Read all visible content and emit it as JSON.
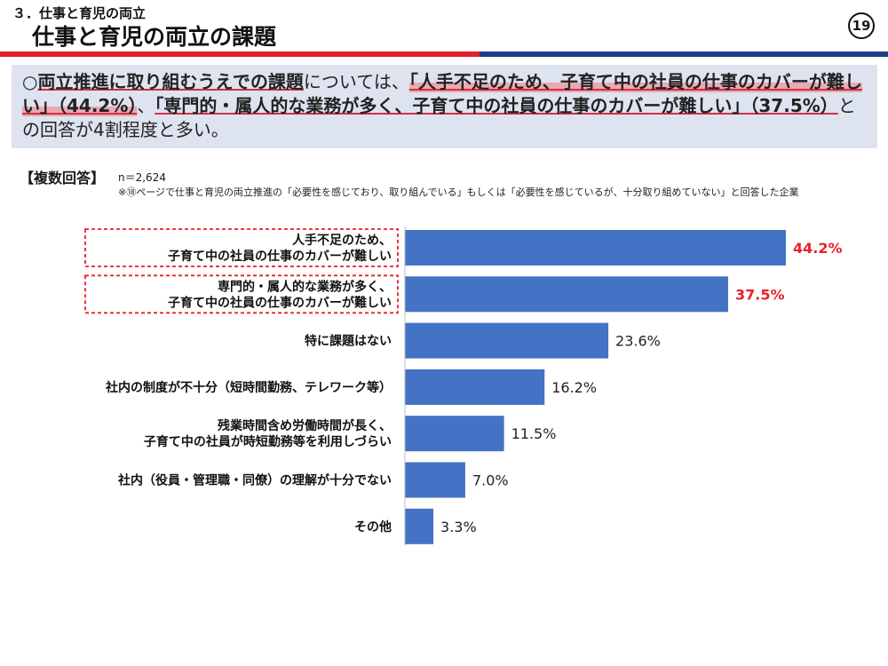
{
  "header": {
    "section": "３．仕事と育児の両立",
    "title": "仕事と育児の両立の課題",
    "page_number": "19"
  },
  "summary": {
    "bullet": "○",
    "part1": "両立推進に取り組むうえでの課題",
    "part2": "については、",
    "part3": "「人手不足のため、子育て中の社員の仕事のカバーが難しい」（44.2%）",
    "part4": "、",
    "part5": "「専門的・属人的な業務が多く、子育て中の社員の仕事のカバーが難しい」（37.5%）",
    "part6": "との回答が4割程度と多い。"
  },
  "note": {
    "answer_type": "【複数回答】",
    "sample_size": "n＝2,624",
    "footnote": "※⑱ページで仕事と育児の両立推進の「必要性を感じており、取り組んでいる」もしくは「必要性を感じているが、十分取り組めていない」と回答した企業"
  },
  "colors": {
    "bar": "#4472c4",
    "highlight": "#e8212b",
    "accent_red": "#e0202a",
    "accent_blue": "#1f3c88"
  },
  "chart_data": {
    "type": "bar",
    "orientation": "horizontal",
    "categories": [
      "人手不足のため、\n子育て中の社員の仕事のカバーが難しい",
      "専門的・属人的な業務が多く、\n子育て中の社員の仕事のカバーが難しい",
      "特に課題はない",
      "社内の制度が不十分（短時間勤務、テレワーク等）",
      "残業時間含め労働時間が長く、\n子育て中の社員が時短勤務等を利用しづらい",
      "社内（役員・管理職・同僚）の理解が十分でない",
      "その他"
    ],
    "values": [
      44.2,
      37.5,
      23.6,
      16.2,
      11.5,
      7.0,
      3.3
    ],
    "value_labels": [
      "44.2%",
      "37.5%",
      "23.6%",
      "16.2%",
      "11.5%",
      "7.0%",
      "3.3%"
    ],
    "highlighted": [
      true,
      true,
      false,
      false,
      false,
      false,
      false
    ],
    "xlim": [
      0,
      44.2
    ],
    "grid": false,
    "legend": "none"
  }
}
